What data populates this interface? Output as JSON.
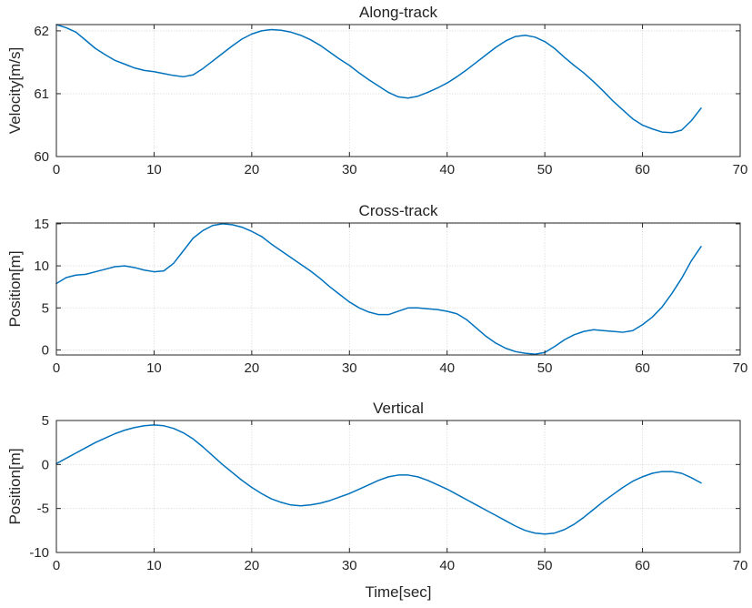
{
  "chart_data": [
    {
      "type": "line",
      "title": "Along-track",
      "xlabel": "",
      "ylabel": "Velocity[m/s]",
      "xlim": [
        0,
        70
      ],
      "ylim": [
        60,
        62.1
      ],
      "xticks": [
        0,
        10,
        20,
        30,
        40,
        50,
        60,
        70
      ],
      "yticks": [
        60,
        61,
        62
      ],
      "xtick_labels": [
        "0",
        "10",
        "20",
        "30",
        "40",
        "50",
        "60",
        "70"
      ],
      "ytick_labels": [
        "60",
        "61",
        "62"
      ],
      "grid": true,
      "series": [
        {
          "color": "#0072bd",
          "x": [
            0,
            1,
            2,
            3,
            4,
            5,
            6,
            7,
            8,
            9,
            10,
            11,
            12,
            13,
            14,
            15,
            16,
            17,
            18,
            19,
            20,
            21,
            22,
            23,
            24,
            25,
            26,
            27,
            28,
            29,
            30,
            31,
            32,
            33,
            34,
            35,
            36,
            37,
            38,
            39,
            40,
            41,
            42,
            43,
            44,
            45,
            46,
            47,
            48,
            49,
            50,
            51,
            52,
            53,
            54,
            55,
            56,
            57,
            58,
            59,
            60,
            61,
            62,
            63,
            64,
            65,
            66
          ],
          "y": [
            62.1,
            62.05,
            61.98,
            61.85,
            61.72,
            61.62,
            61.53,
            61.47,
            61.41,
            61.37,
            61.35,
            61.32,
            61.29,
            61.27,
            61.3,
            61.4,
            61.52,
            61.64,
            61.76,
            61.87,
            61.95,
            62.0,
            62.02,
            62.01,
            61.98,
            61.93,
            61.86,
            61.77,
            61.66,
            61.55,
            61.45,
            61.33,
            61.22,
            61.12,
            61.02,
            60.95,
            60.93,
            60.96,
            61.02,
            61.09,
            61.17,
            61.27,
            61.38,
            61.5,
            61.62,
            61.74,
            61.84,
            61.91,
            61.93,
            61.9,
            61.83,
            61.72,
            61.58,
            61.45,
            61.33,
            61.19,
            61.04,
            60.88,
            60.74,
            60.6,
            60.5,
            60.44,
            60.39,
            60.38,
            60.42,
            60.57,
            60.77
          ]
        }
      ]
    },
    {
      "type": "line",
      "title": "Cross-track",
      "xlabel": "",
      "ylabel": "Position[m]",
      "xlim": [
        0,
        70
      ],
      "ylim": [
        -0.6,
        15.1
      ],
      "xticks": [
        0,
        10,
        20,
        30,
        40,
        50,
        60,
        70
      ],
      "yticks": [
        0,
        5,
        10,
        15
      ],
      "xtick_labels": [
        "0",
        "10",
        "20",
        "30",
        "40",
        "50",
        "60",
        "70"
      ],
      "ytick_labels": [
        "0",
        "5",
        "10",
        "15"
      ],
      "grid": true,
      "series": [
        {
          "color": "#0072bd",
          "x": [
            0,
            1,
            2,
            3,
            4,
            5,
            6,
            7,
            8,
            9,
            10,
            11,
            12,
            13,
            14,
            15,
            16,
            17,
            18,
            19,
            20,
            21,
            22,
            23,
            24,
            25,
            26,
            27,
            28,
            29,
            30,
            31,
            32,
            33,
            34,
            35,
            36,
            37,
            38,
            39,
            40,
            41,
            42,
            43,
            44,
            45,
            46,
            47,
            48,
            49,
            50,
            51,
            52,
            53,
            54,
            55,
            56,
            57,
            58,
            59,
            60,
            61,
            62,
            63,
            64,
            65,
            66
          ],
          "y": [
            7.9,
            8.6,
            8.9,
            9.0,
            9.3,
            9.6,
            9.9,
            10.0,
            9.8,
            9.5,
            9.3,
            9.4,
            10.3,
            11.8,
            13.3,
            14.2,
            14.8,
            15.0,
            14.9,
            14.6,
            14.1,
            13.5,
            12.6,
            11.8,
            11.0,
            10.2,
            9.4,
            8.5,
            7.5,
            6.6,
            5.7,
            5.0,
            4.5,
            4.2,
            4.2,
            4.6,
            5.0,
            5.0,
            4.9,
            4.8,
            4.6,
            4.3,
            3.6,
            2.6,
            1.6,
            0.8,
            0.2,
            -0.2,
            -0.4,
            -0.5,
            -0.3,
            0.4,
            1.2,
            1.8,
            2.2,
            2.4,
            2.3,
            2.2,
            2.1,
            2.3,
            3.0,
            3.9,
            5.1,
            6.7,
            8.5,
            10.6,
            12.3
          ]
        }
      ]
    },
    {
      "type": "line",
      "title": "Vertical",
      "xlabel": "Time[sec]",
      "ylabel": "Position[m]",
      "xlim": [
        0,
        70
      ],
      "ylim": [
        -10,
        5
      ],
      "xticks": [
        0,
        10,
        20,
        30,
        40,
        50,
        60,
        70
      ],
      "yticks": [
        -10,
        -5,
        0,
        5
      ],
      "xtick_labels": [
        "0",
        "10",
        "20",
        "30",
        "40",
        "50",
        "60",
        "70"
      ],
      "ytick_labels": [
        "-10",
        "-5",
        "0",
        "5"
      ],
      "grid": true,
      "series": [
        {
          "color": "#0072bd",
          "x": [
            0,
            1,
            2,
            3,
            4,
            5,
            6,
            7,
            8,
            9,
            10,
            11,
            12,
            13,
            14,
            15,
            16,
            17,
            18,
            19,
            20,
            21,
            22,
            23,
            24,
            25,
            26,
            27,
            28,
            29,
            30,
            31,
            32,
            33,
            34,
            35,
            36,
            37,
            38,
            39,
            40,
            41,
            42,
            43,
            44,
            45,
            46,
            47,
            48,
            49,
            50,
            51,
            52,
            53,
            54,
            55,
            56,
            57,
            58,
            59,
            60,
            61,
            62,
            63,
            64,
            65,
            66
          ],
          "y": [
            0.1,
            0.7,
            1.3,
            1.9,
            2.5,
            3.0,
            3.5,
            3.9,
            4.2,
            4.4,
            4.5,
            4.4,
            4.1,
            3.6,
            2.9,
            2.0,
            1.0,
            0.0,
            -0.9,
            -1.8,
            -2.6,
            -3.3,
            -3.9,
            -4.3,
            -4.6,
            -4.7,
            -4.6,
            -4.4,
            -4.1,
            -3.7,
            -3.3,
            -2.8,
            -2.3,
            -1.8,
            -1.4,
            -1.2,
            -1.2,
            -1.4,
            -1.8,
            -2.3,
            -2.8,
            -3.4,
            -4.0,
            -4.6,
            -5.2,
            -5.8,
            -6.4,
            -7.0,
            -7.5,
            -7.8,
            -7.9,
            -7.8,
            -7.4,
            -6.8,
            -6.0,
            -5.1,
            -4.2,
            -3.4,
            -2.6,
            -1.9,
            -1.4,
            -1.0,
            -0.8,
            -0.8,
            -1.0,
            -1.5,
            -2.1
          ]
        }
      ]
    }
  ]
}
